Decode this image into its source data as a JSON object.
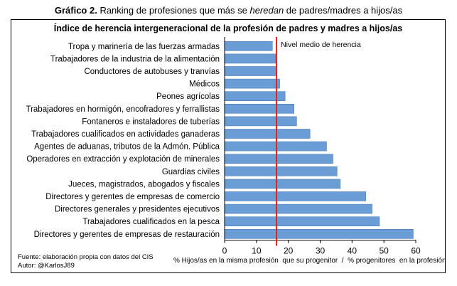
{
  "page_title": {
    "label": "Gráfico 2.",
    "text_before": " Ranking de profesiones que más se ",
    "emph": "heredan",
    "text_after": " de padres/madres a hijos/as"
  },
  "source": {
    "line1": "Fuente: elaboración propia con datos del CIS",
    "line2": "Autor: @KarlosJ89"
  },
  "colors": {
    "bar": "#6A9CD5",
    "bar_edge": "#4A7EBB",
    "reference_line": "#E02020"
  },
  "chart_data": {
    "type": "bar",
    "orientation": "horizontal",
    "title": "Índice de herencia intergeneracional de la profesión de padres y madres a hijos/as",
    "xlabel": "% Hijos/as en la misma profesión  que su progenitor  /  % progenitores  en la profesión",
    "ylabel": "",
    "xlim": [
      0,
      60
    ],
    "x_ticks": [
      0,
      10,
      20,
      30,
      40,
      50,
      60
    ],
    "grid": false,
    "legend": "none",
    "categories": [
      "Tropa y marinería de las fuerzas armadas",
      "Trabajadores de la industria de la alimentación",
      "Conductores de autobuses y tranvías",
      "Médicos",
      "Peones agrícolas",
      "Trabajadores en hormigón, encofradores y ferrallistas",
      "Fontaneros e instaladores de tuberías",
      "Trabajadores cualificados en actividades ganaderas",
      "Agentes de aduanas, tributos de la Admón. Pública",
      "Operadores en extracción y explotación de minerales",
      "Guardias civiles",
      "Jueces, magistrados, abogados y fiscales",
      "Directores y gerentes de empresas de comercio",
      "Directores generales y presidentes ejecutivos",
      "Trabajadores cualificados en la pesca",
      "Directores y gerentes de empresas de restauración"
    ],
    "values": [
      15.0,
      16.0,
      16.2,
      17.3,
      19.0,
      21.8,
      22.6,
      26.8,
      32.0,
      34.0,
      35.3,
      36.3,
      44.3,
      46.3,
      48.6,
      59.2
    ],
    "reference_line": {
      "value": 16.3,
      "label": "Nivel medio de herencia"
    }
  }
}
